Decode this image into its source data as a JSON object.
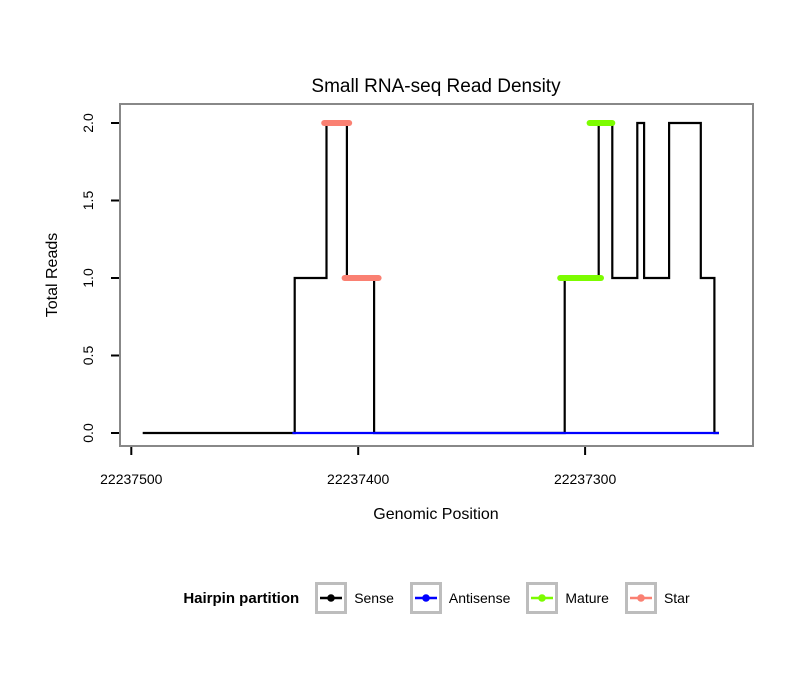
{
  "chart_data": {
    "type": "line",
    "title": "Small RNA-seq Read Density",
    "xlabel": "Genomic Position",
    "ylabel": "Total Reads",
    "x_domain": [
      22237505,
      22237226
    ],
    "x_reversed": true,
    "y_domain": [
      0,
      2
    ],
    "x_ticks": [
      22237500,
      22237400,
      22237300
    ],
    "y_ticks": [
      "0.0",
      "0.5",
      "1.0",
      "1.5",
      "2.0"
    ],
    "series": [
      {
        "name": "Sense",
        "color": "#000000",
        "style": "step",
        "points": [
          [
            22237495,
            0
          ],
          [
            22237428,
            0
          ],
          [
            22237428,
            1
          ],
          [
            22237414,
            1
          ],
          [
            22237414,
            2
          ],
          [
            22237405,
            2
          ],
          [
            22237405,
            1
          ],
          [
            22237393,
            1
          ],
          [
            22237393,
            0
          ],
          [
            22237309,
            0
          ],
          [
            22237309,
            1
          ],
          [
            22237294,
            1
          ],
          [
            22237294,
            2
          ],
          [
            22237288,
            2
          ],
          [
            22237288,
            1
          ],
          [
            22237277,
            1
          ],
          [
            22237277,
            2
          ],
          [
            22237274,
            2
          ],
          [
            22237274,
            1
          ],
          [
            22237263,
            1
          ],
          [
            22237263,
            2
          ],
          [
            22237249,
            2
          ],
          [
            22237249,
            1
          ],
          [
            22237243,
            1
          ],
          [
            22237243,
            0
          ],
          [
            22237241,
            0
          ]
        ]
      },
      {
        "name": "Antisense",
        "color": "#0000ff",
        "style": "line",
        "points": [
          [
            22237429,
            0
          ],
          [
            22237241,
            0
          ]
        ]
      }
    ],
    "segments": [
      {
        "partition": "Star",
        "color": "#fa8072",
        "y": 2,
        "x_start": 22237415,
        "x_end": 22237404
      },
      {
        "partition": "Star",
        "color": "#fa8072",
        "y": 1,
        "x_start": 22237406,
        "x_end": 22237391
      },
      {
        "partition": "Mature",
        "color": "#7cfc00",
        "y": 2,
        "x_start": 22237298,
        "x_end": 22237288
      },
      {
        "partition": "Mature",
        "color": "#7cfc00",
        "y": 1,
        "x_start": 22237311,
        "x_end": 22237293
      }
    ],
    "legend": {
      "title": "Hairpin partition",
      "position": "bottom",
      "entries": [
        {
          "label": "Sense",
          "color": "#000000"
        },
        {
          "label": "Antisense",
          "color": "#0000ff"
        },
        {
          "label": "Mature",
          "color": "#7cfc00"
        },
        {
          "label": "Star",
          "color": "#fa8072"
        }
      ]
    },
    "colors": {
      "frame": "#888888",
      "legend_box_border": "#bdbdbd",
      "background": "#ffffff",
      "sense": "#000000",
      "antisense": "#0000ff",
      "mature": "#7cfc00",
      "star": "#fa8072"
    },
    "grid": "off"
  }
}
